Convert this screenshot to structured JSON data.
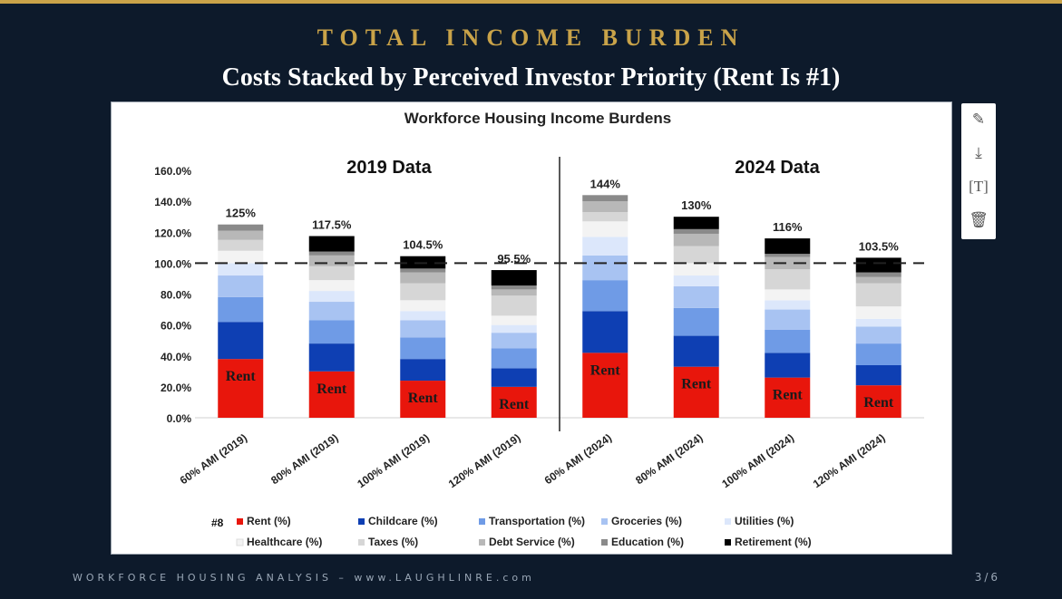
{
  "slide": {
    "kicker": "TOTAL INCOME BURDEN",
    "subtitle": "Costs Stacked by Perceived Investor Priority (Rent Is #1)",
    "footer": "WORKFORCE HOUSING ANALYSIS – www.LAUGHLINRE.com",
    "page": "3/6"
  },
  "toolbar": {
    "edit_icon": "pencil-icon",
    "download_icon": "download-icon",
    "text_icon": "text-icon",
    "delete_icon": "trash-icon"
  },
  "chart_data": {
    "type": "bar",
    "stacked": true,
    "title": "Workforce Housing Income Burdens",
    "group_labels": [
      "2019 Data",
      "2024 Data"
    ],
    "categories": [
      "60% AMI (2019)",
      "80% AMI (2019)",
      "100% AMI (2019)",
      "120% AMI (2019)",
      "60% AMI (2024)",
      "80% AMI (2024)",
      "100% AMI (2024)",
      "120% AMI (2024)"
    ],
    "totals": [
      "125%",
      "117.5%",
      "104.5%",
      "95.5%",
      "144%",
      "130%",
      "116%",
      "103.5%"
    ],
    "bar_annotation": "Rent",
    "legend_note": "#8",
    "ylim": [
      0,
      160
    ],
    "yticks": [
      0,
      20,
      40,
      60,
      80,
      100,
      120,
      140,
      160
    ],
    "ytick_labels": [
      "0.0%",
      "20.0%",
      "40.0%",
      "60.0%",
      "80.0%",
      "100.0%",
      "120.0%",
      "140.0%",
      "160.0%"
    ],
    "reference_line": 100,
    "series": [
      {
        "name": "Rent (%)",
        "color": "#e8160c",
        "values": [
          38,
          30,
          24,
          20,
          42,
          33,
          26,
          21
        ]
      },
      {
        "name": "Childcare (%)",
        "color": "#0e3fb3",
        "values": [
          24,
          18,
          14,
          12,
          27,
          20,
          16,
          13
        ]
      },
      {
        "name": "Transportation (%)",
        "color": "#6f9be6",
        "values": [
          16,
          15,
          14,
          13,
          20,
          18,
          15,
          14
        ]
      },
      {
        "name": "Groceries (%)",
        "color": "#a8c3f2",
        "values": [
          14,
          12,
          11,
          10,
          16,
          14,
          13,
          11
        ]
      },
      {
        "name": "Utilities (%)",
        "color": "#dce7fb",
        "values": [
          8,
          7,
          6,
          5,
          12,
          7,
          6,
          5
        ]
      },
      {
        "name": "Healthcare (%)",
        "color": "#f3f3f3",
        "values": [
          8,
          7,
          7,
          6,
          10,
          8,
          7,
          8
        ]
      },
      {
        "name": "Taxes (%)",
        "color": "#d6d6d6",
        "values": [
          7,
          9,
          11,
          13,
          6,
          11,
          13,
          15
        ]
      },
      {
        "name": "Debt Service (%)",
        "color": "#b8b8b8",
        "values": [
          6,
          7,
          7,
          4,
          7,
          8,
          8,
          4
        ]
      },
      {
        "name": "Education (%)",
        "color": "#8a8a8a",
        "values": [
          4,
          2.5,
          2.5,
          2.5,
          4,
          3,
          2,
          3
        ]
      },
      {
        "name": "Retirement (%)",
        "color": "#000000",
        "values": [
          0,
          10,
          8,
          10,
          0,
          8,
          10,
          9.5
        ]
      }
    ]
  }
}
